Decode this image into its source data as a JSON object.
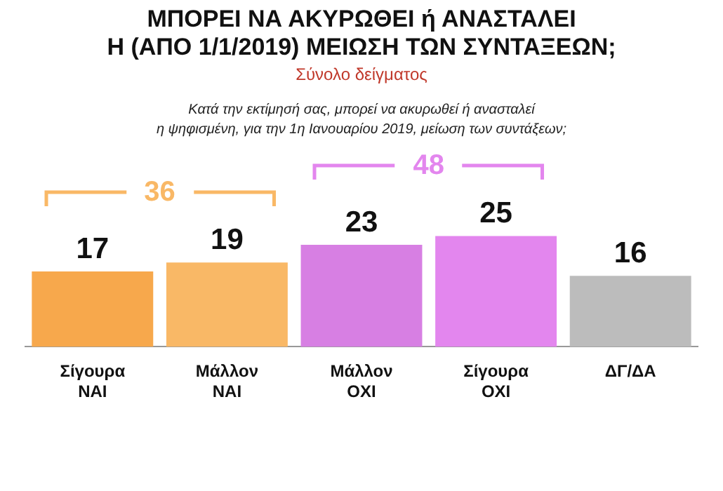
{
  "chart_data": {
    "type": "bar",
    "title": "ΜΠΟΡΕΙ ΝΑ ΑΚΥΡΩΘΕΙ ή ΑΝΑΣΤΑΛΕΙ\nΗ (ΑΠΟ 1/1/2019) ΜΕΙΩΣΗ ΤΩΝ ΣΥΝΤΑΞΕΩΝ;",
    "subtitle": "Σύνολο δείγματος",
    "categories": [
      "Σίγουρα ΝΑΙ",
      "Μάλλον ΝΑΙ",
      "Μάλλον ΟΧΙ",
      "Σίγουρα ΟΧΙ",
      "ΔΓ/ΔΑ"
    ],
    "values": [
      17,
      19,
      23,
      25,
      16
    ],
    "colors": [
      "#f7a84c",
      "#f9b866",
      "#d77fe3",
      "#e386ee",
      "#bcbcbc"
    ],
    "data_labels": true,
    "annotations": [
      "Κατά την εκτίμησή σας, μπορεί να ακυρωθεί ή ανασταλεί\nη ψηφισμένη, για την 1η Ιανουαρίου 2019, μείωση των συντάξεων;",
      "36",
      "48"
    ]
  }
}
